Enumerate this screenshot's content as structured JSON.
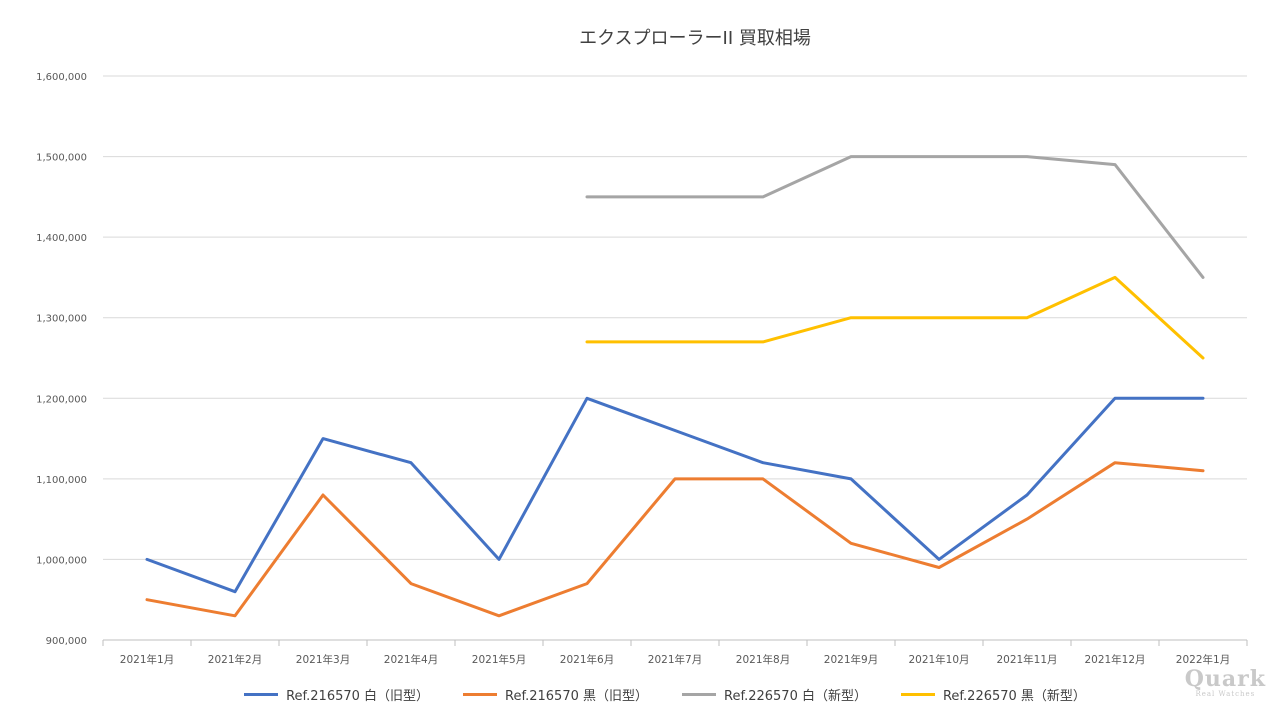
{
  "chart_data": {
    "type": "line",
    "title": "エクスプローラーII 買取相場",
    "xlabel": "",
    "ylabel": "",
    "categories": [
      "2021年1月",
      "2021年2月",
      "2021年3月",
      "2021年4月",
      "2021年5月",
      "2021年6月",
      "2021年7月",
      "2021年8月",
      "2021年9月",
      "2021年10月",
      "2021年11月",
      "2021年12月",
      "2022年1月"
    ],
    "ylim": [
      900000,
      1600000
    ],
    "yticks": [
      900000,
      1000000,
      1100000,
      1200000,
      1300000,
      1400000,
      1500000,
      1600000
    ],
    "ytick_labels": [
      "900,000",
      "1,000,000",
      "1,100,000",
      "1,200,000",
      "1,300,000",
      "1,400,000",
      "1,500,000",
      "1,600,000"
    ],
    "grid": true,
    "legend_position": "bottom",
    "series": [
      {
        "name": "Ref.216570 白（旧型）",
        "color": "#4472C4",
        "values": [
          1000000,
          960000,
          1150000,
          1120000,
          1000000,
          1200000,
          1160000,
          1120000,
          1100000,
          1000000,
          1080000,
          1200000,
          1200000
        ]
      },
      {
        "name": "Ref.216570 黒（旧型）",
        "color": "#ED7D31",
        "values": [
          950000,
          930000,
          1080000,
          970000,
          930000,
          970000,
          1100000,
          1100000,
          1020000,
          990000,
          1050000,
          1120000,
          1110000
        ]
      },
      {
        "name": "Ref.226570 白（新型）",
        "color": "#A5A5A5",
        "values": [
          null,
          null,
          null,
          null,
          null,
          1450000,
          1450000,
          1450000,
          1500000,
          1500000,
          1500000,
          1490000,
          1350000
        ]
      },
      {
        "name": "Ref.226570 黒（新型）",
        "color": "#FFC000",
        "values": [
          null,
          null,
          null,
          null,
          null,
          1270000,
          1270000,
          1270000,
          1300000,
          1300000,
          1300000,
          1350000,
          1250000
        ]
      }
    ]
  },
  "watermark": {
    "big": "Quark",
    "small": "Real Watches"
  }
}
